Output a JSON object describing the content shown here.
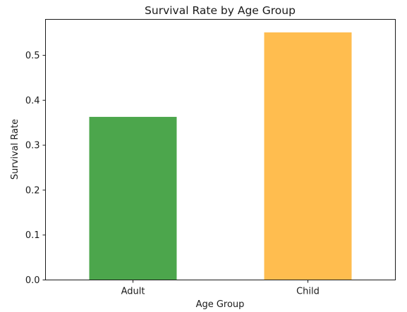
{
  "chart_data": {
    "type": "bar",
    "title": "Survival Rate by Age Group",
    "xlabel": "Age Group",
    "ylabel": "Survival Rate",
    "categories": [
      "Adult",
      "Child"
    ],
    "values": [
      0.363,
      0.551
    ],
    "colors": [
      "#4ca64c",
      "#ffbd4f"
    ],
    "ylim": [
      0,
      0.58
    ],
    "yticks": [
      "0.0",
      "0.1",
      "0.2",
      "0.3",
      "0.4",
      "0.5"
    ],
    "grid": false,
    "legend": "none"
  }
}
